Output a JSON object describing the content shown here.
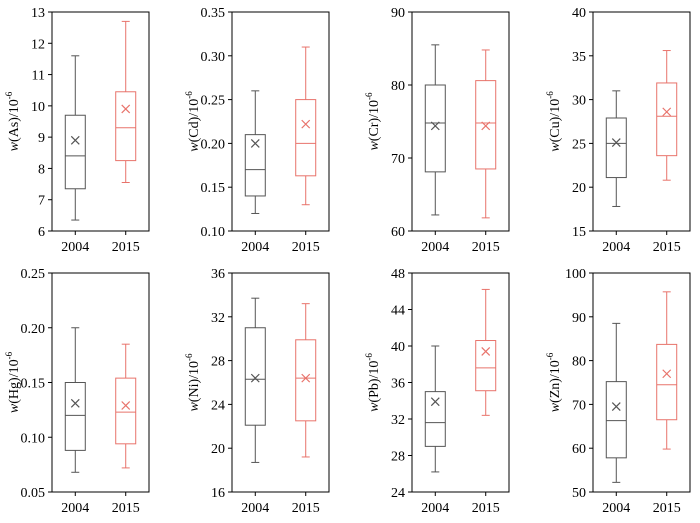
{
  "chart_data": [
    {
      "type": "box",
      "ylabel_var": "w",
      "element": "As",
      "ylabel_unit": "/10",
      "ylabel_exp": "-6",
      "yticks": [
        6,
        7,
        8,
        9,
        10,
        11,
        12,
        13
      ],
      "ylim": [
        6,
        13
      ],
      "categories": [
        "2004",
        "2015"
      ],
      "boxes": [
        {
          "year": "2004",
          "min": 6.35,
          "q1": 7.35,
          "median": 8.4,
          "q3": 9.7,
          "max": 11.6,
          "mean": 8.9,
          "color": "#555555"
        },
        {
          "year": "2015",
          "min": 7.55,
          "q1": 8.25,
          "median": 9.3,
          "q3": 10.45,
          "max": 12.7,
          "mean": 9.9,
          "color": "#e8736b"
        }
      ]
    },
    {
      "type": "box",
      "ylabel_var": "w",
      "element": "Cd",
      "ylabel_unit": "/10",
      "ylabel_exp": "-6",
      "yticks": [
        "0.10",
        "0.15",
        "0.20",
        "0.25",
        "0.30",
        "0.35"
      ],
      "ylim": [
        0.1,
        0.35
      ],
      "categories": [
        "2004",
        "2015"
      ],
      "boxes": [
        {
          "year": "2004",
          "min": 0.12,
          "q1": 0.14,
          "median": 0.17,
          "q3": 0.21,
          "max": 0.26,
          "mean": 0.2,
          "color": "#555555"
        },
        {
          "year": "2015",
          "min": 0.13,
          "q1": 0.163,
          "median": 0.2,
          "q3": 0.25,
          "max": 0.31,
          "mean": 0.222,
          "color": "#e8736b"
        }
      ]
    },
    {
      "type": "box",
      "ylabel_var": "w",
      "element": "Cr",
      "ylabel_unit": "/10",
      "ylabel_exp": "-6",
      "yticks": [
        60,
        70,
        80,
        90
      ],
      "ylim": [
        60,
        90
      ],
      "categories": [
        "2004",
        "2015"
      ],
      "boxes": [
        {
          "year": "2004",
          "min": 62.2,
          "q1": 68.1,
          "median": 74.8,
          "q3": 80.0,
          "max": 85.5,
          "mean": 74.4,
          "color": "#555555"
        },
        {
          "year": "2015",
          "min": 61.8,
          "q1": 68.5,
          "median": 74.8,
          "q3": 80.6,
          "max": 84.8,
          "mean": 74.4,
          "color": "#e8736b"
        }
      ]
    },
    {
      "type": "box",
      "ylabel_var": "w",
      "element": "Cu",
      "ylabel_unit": "/10",
      "ylabel_exp": "-6",
      "yticks": [
        15,
        20,
        25,
        30,
        35,
        40
      ],
      "ylim": [
        15,
        40
      ],
      "categories": [
        "2004",
        "2015"
      ],
      "boxes": [
        {
          "year": "2004",
          "min": 17.8,
          "q1": 21.1,
          "median": 25.0,
          "q3": 27.9,
          "max": 31.0,
          "mean": 25.1,
          "color": "#555555"
        },
        {
          "year": "2015",
          "min": 20.8,
          "q1": 23.6,
          "median": 28.1,
          "q3": 31.9,
          "max": 35.6,
          "mean": 28.6,
          "color": "#e8736b"
        }
      ]
    },
    {
      "type": "box",
      "ylabel_var": "w",
      "element": "Hg",
      "ylabel_unit": "/10",
      "ylabel_exp": "-6",
      "yticks": [
        "0.05",
        "0.10",
        "0.15",
        "0.20",
        "0.25"
      ],
      "ylim": [
        0.05,
        0.25
      ],
      "categories": [
        "2004",
        "2015"
      ],
      "boxes": [
        {
          "year": "2004",
          "min": 0.068,
          "q1": 0.088,
          "median": 0.12,
          "q3": 0.15,
          "max": 0.2,
          "mean": 0.131,
          "color": "#555555"
        },
        {
          "year": "2015",
          "min": 0.072,
          "q1": 0.094,
          "median": 0.123,
          "q3": 0.154,
          "max": 0.185,
          "mean": 0.129,
          "color": "#e8736b"
        }
      ]
    },
    {
      "type": "box",
      "ylabel_var": "w",
      "element": "Ni",
      "ylabel_unit": "/10",
      "ylabel_exp": "-6",
      "yticks": [
        16,
        20,
        24,
        28,
        32,
        36
      ],
      "ylim": [
        16,
        36
      ],
      "categories": [
        "2004",
        "2015"
      ],
      "boxes": [
        {
          "year": "2004",
          "min": 18.7,
          "q1": 22.1,
          "median": 26.3,
          "q3": 31.0,
          "max": 33.7,
          "mean": 26.4,
          "color": "#555555"
        },
        {
          "year": "2015",
          "min": 19.2,
          "q1": 22.5,
          "median": 26.4,
          "q3": 29.9,
          "max": 33.2,
          "mean": 26.4,
          "color": "#e8736b"
        }
      ]
    },
    {
      "type": "box",
      "ylabel_var": "w",
      "element": "Pb",
      "ylabel_unit": "/10",
      "ylabel_exp": "-6",
      "yticks": [
        24,
        28,
        32,
        36,
        40,
        44,
        48
      ],
      "ylim": [
        24,
        48
      ],
      "categories": [
        "2004",
        "2015"
      ],
      "boxes": [
        {
          "year": "2004",
          "min": 26.2,
          "q1": 29.0,
          "median": 31.6,
          "q3": 35.0,
          "max": 40.0,
          "mean": 33.9,
          "color": "#555555"
        },
        {
          "year": "2015",
          "min": 32.4,
          "q1": 35.1,
          "median": 37.6,
          "q3": 40.6,
          "max": 46.2,
          "mean": 39.4,
          "color": "#e8736b"
        }
      ]
    },
    {
      "type": "box",
      "ylabel_var": "w",
      "element": "Zn",
      "ylabel_unit": "/10",
      "ylabel_exp": "-6",
      "yticks": [
        50,
        60,
        70,
        80,
        90,
        100
      ],
      "ylim": [
        50,
        100
      ],
      "categories": [
        "2004",
        "2015"
      ],
      "boxes": [
        {
          "year": "2004",
          "min": 52.2,
          "q1": 57.8,
          "median": 66.3,
          "q3": 75.2,
          "max": 88.5,
          "mean": 69.5,
          "color": "#555555"
        },
        {
          "year": "2015",
          "min": 59.8,
          "q1": 66.5,
          "median": 74.5,
          "q3": 83.7,
          "max": 95.7,
          "mean": 77.0,
          "color": "#e8736b"
        }
      ]
    }
  ]
}
